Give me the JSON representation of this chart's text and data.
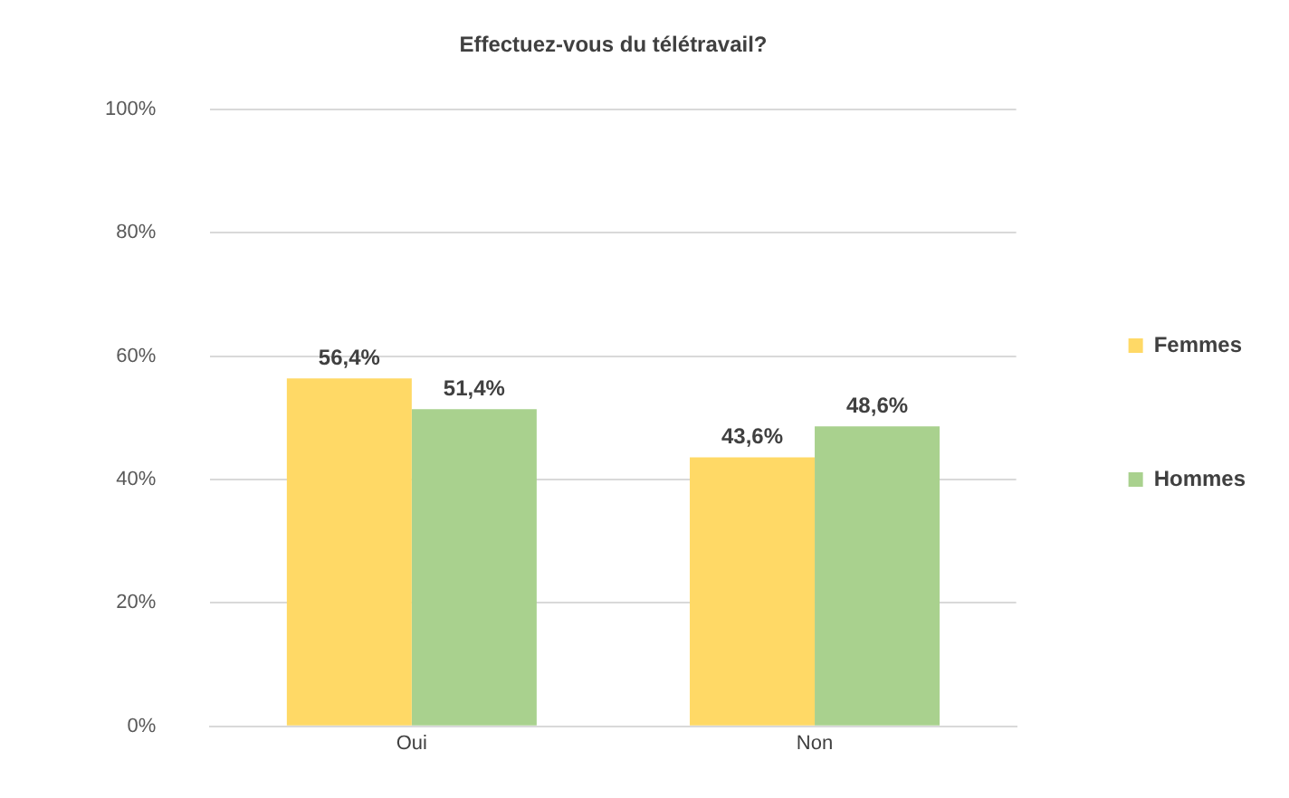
{
  "chart_data": {
    "type": "bar",
    "title": "Effectuez-vous du télétravail?",
    "categories": [
      "Oui",
      "Non"
    ],
    "series": [
      {
        "name": "Femmes",
        "color": "#ffd966",
        "values": [
          56.4,
          43.6
        ],
        "value_labels": [
          "56,4%",
          "43,6%"
        ]
      },
      {
        "name": "Hommes",
        "color": "#a9d18e",
        "values": [
          51.4,
          48.6
        ],
        "value_labels": [
          "51,4%",
          "48,6%"
        ]
      }
    ],
    "ylim": [
      0,
      100
    ],
    "yticks": [
      {
        "value": 0,
        "label": "0%"
      },
      {
        "value": 20,
        "label": "20%"
      },
      {
        "value": 40,
        "label": "40%"
      },
      {
        "value": 60,
        "label": "60%"
      },
      {
        "value": 80,
        "label": "80%"
      },
      {
        "value": 100,
        "label": "100%"
      }
    ],
    "grid": "y",
    "legend": "right"
  }
}
